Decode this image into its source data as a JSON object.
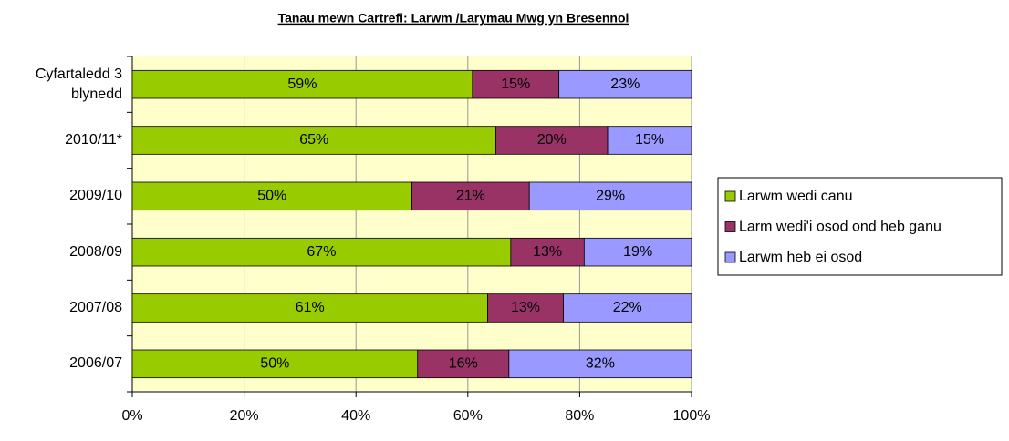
{
  "chart_data": {
    "type": "bar",
    "orientation": "horizontal",
    "stacked": "percent",
    "title": "Tanau mewn Cartrefi: Larwm /Larymau Mwg yn Bresennol",
    "categories": [
      "Cyfartaledd 3 blynedd",
      "2010/11*",
      "2009/10",
      "2008/09",
      "2007/08",
      "2006/07"
    ],
    "series": [
      {
        "name": "Larwm wedi canu",
        "color": "#99cc00",
        "values": [
          59,
          65,
          50,
          67,
          61,
          50
        ],
        "value_labels": [
          "59%",
          "65%",
          "50%",
          "67%",
          "61%",
          "50%"
        ]
      },
      {
        "name": "Larm wedi'i osod ond heb ganu",
        "color": "#993366",
        "values": [
          15,
          20,
          21,
          13,
          13,
          16
        ],
        "value_labels": [
          "15%",
          "20%",
          "21%",
          "13%",
          "13%",
          "16%"
        ]
      },
      {
        "name": "Larwm heb ei osod",
        "color": "#9999ff",
        "values": [
          23,
          15,
          29,
          19,
          22,
          32
        ],
        "value_labels": [
          "23%",
          "15%",
          "29%",
          "19%",
          "22%",
          "32%"
        ]
      }
    ],
    "xlim": [
      0,
      100
    ],
    "xticks": [
      {
        "value": 0,
        "label": "0%"
      },
      {
        "value": 20,
        "label": "20%"
      },
      {
        "value": 40,
        "label": "40%"
      },
      {
        "value": 60,
        "label": "60%"
      },
      {
        "value": 80,
        "label": "80%"
      },
      {
        "value": 100,
        "label": "100%"
      }
    ],
    "grid": true,
    "legend": "right",
    "background": "#ffffcc"
  }
}
